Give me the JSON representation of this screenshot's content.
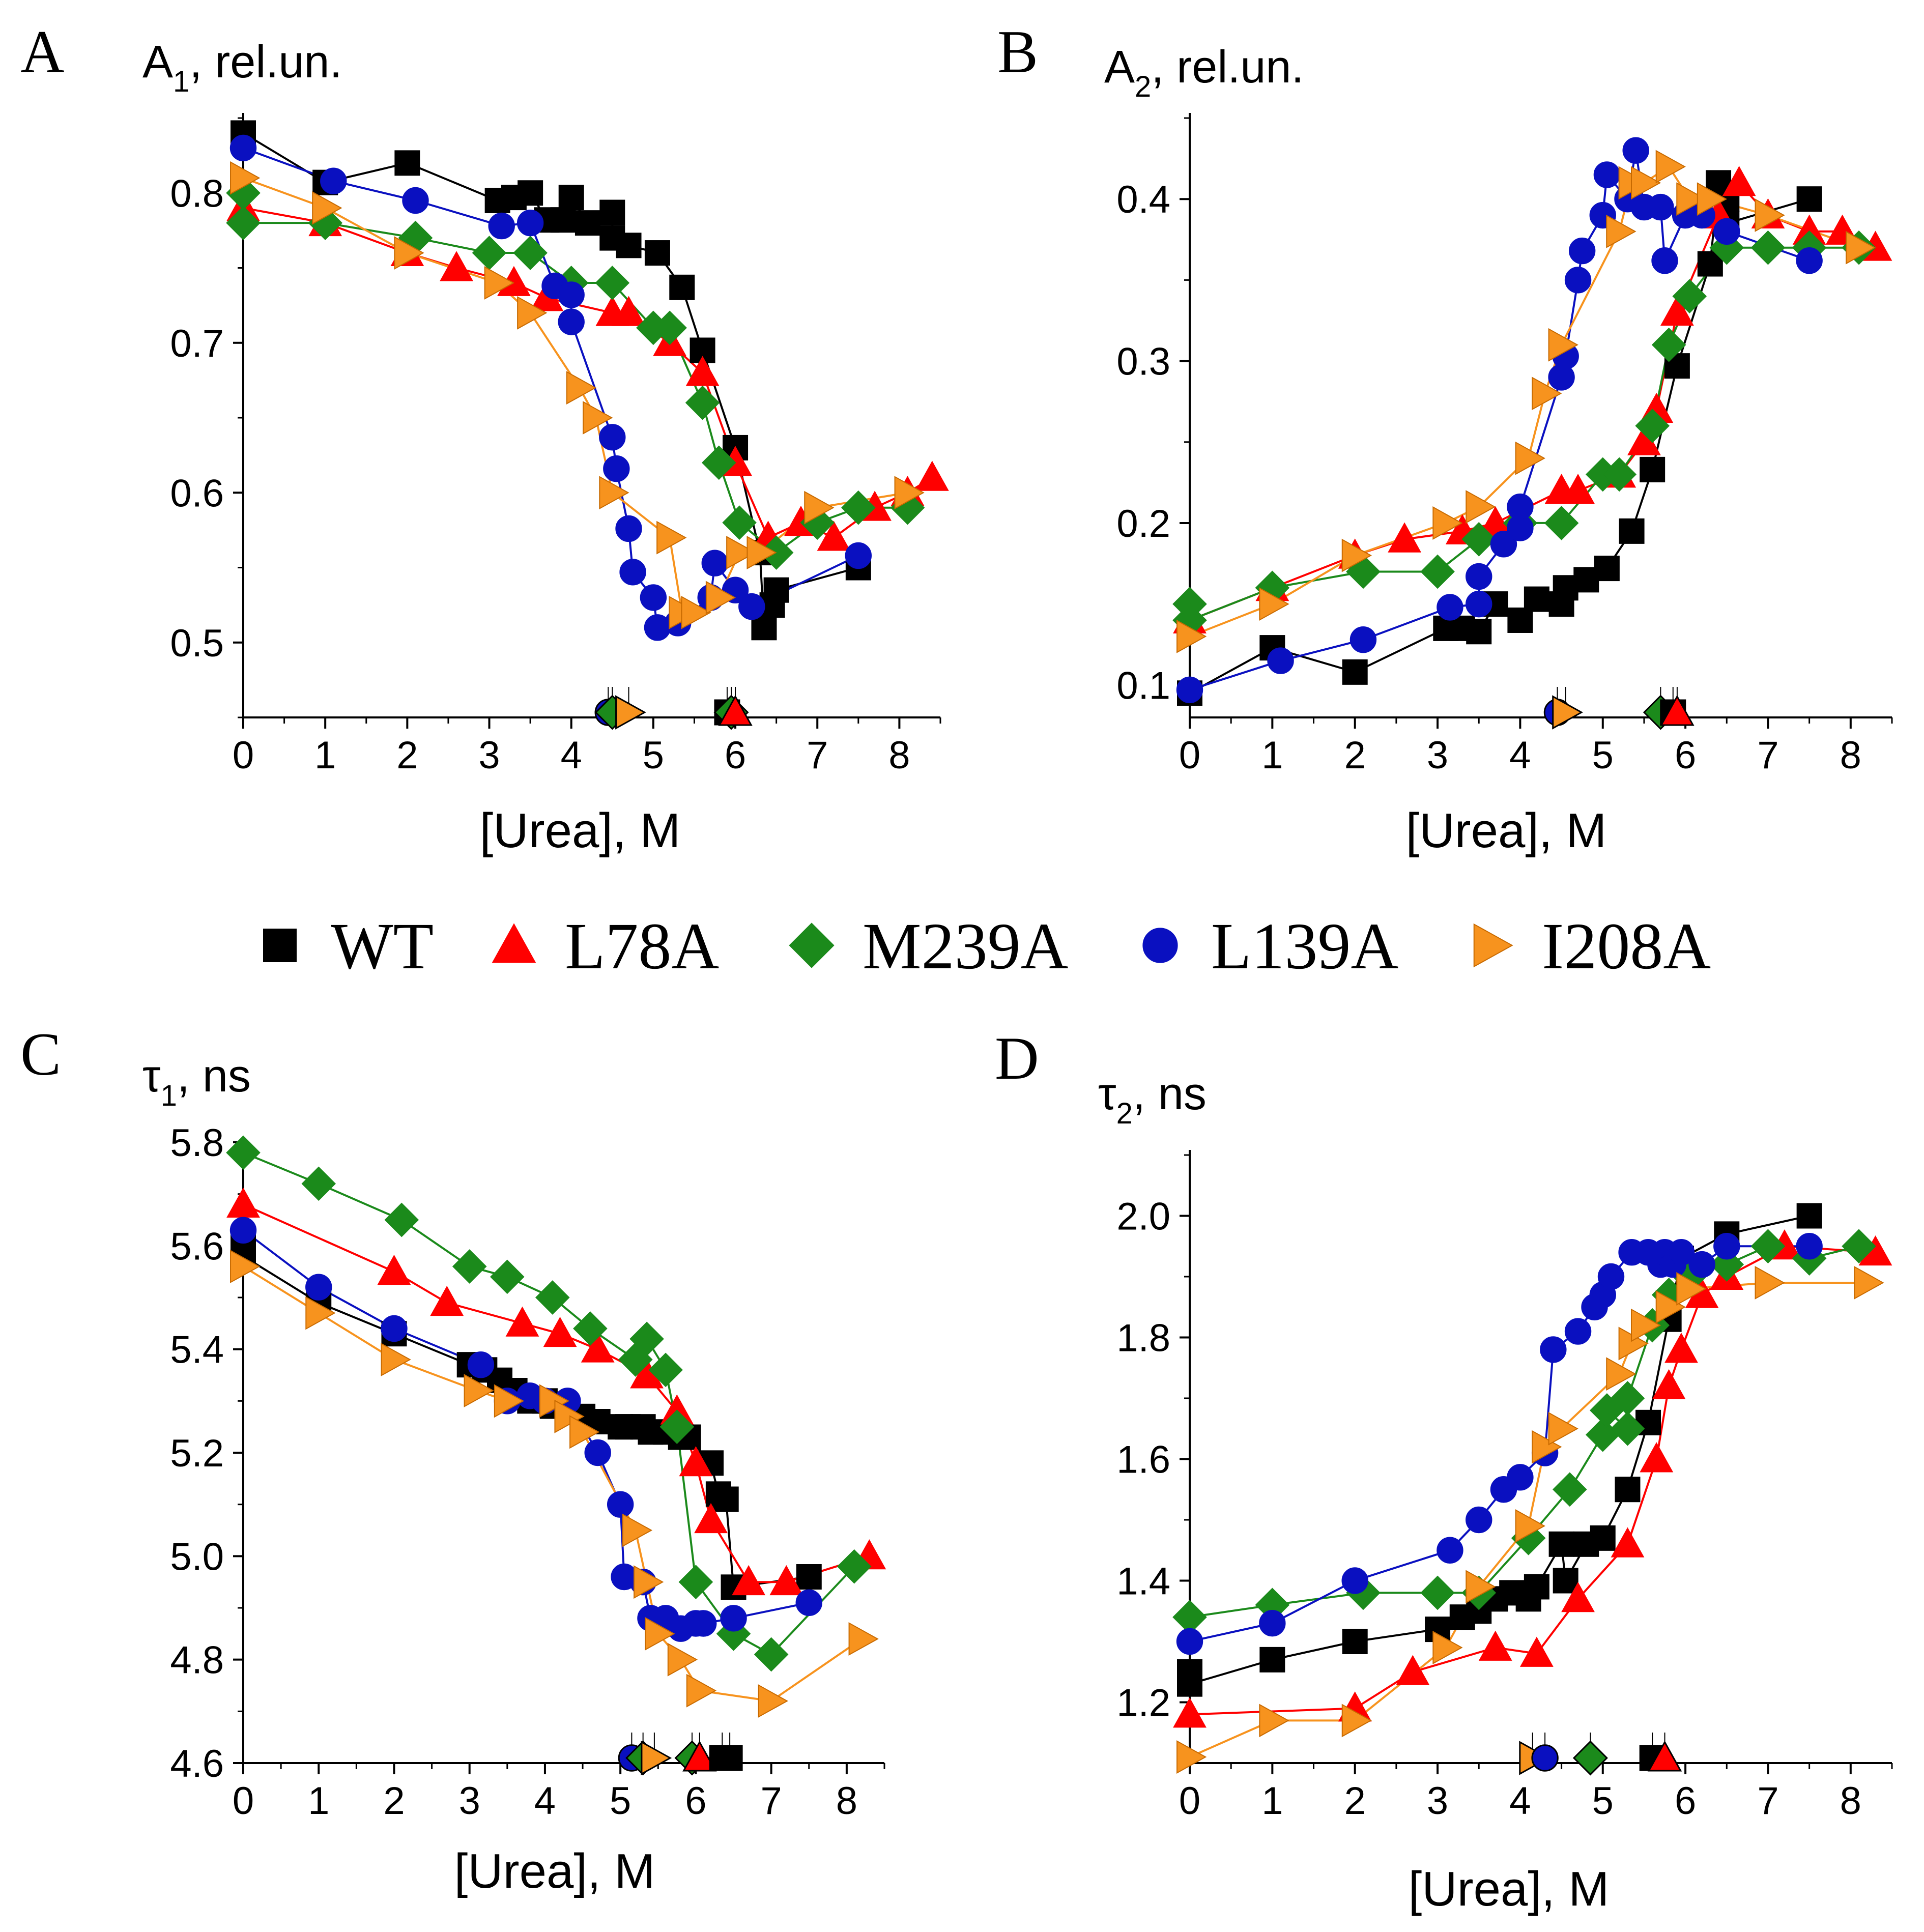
{
  "legend": [
    {
      "name": "WT",
      "color": "#000000",
      "marker": "square"
    },
    {
      "name": "L78A",
      "color": "#ff0000",
      "marker": "triangle-up"
    },
    {
      "name": "M239A",
      "color": "#1b8a1b",
      "marker": "diamond"
    },
    {
      "name": "L139A",
      "color": "#0a10c0",
      "marker": "circle"
    },
    {
      "name": "I208A",
      "color": "#f7931e",
      "marker": "triangle-right"
    }
  ],
  "chart_data": [
    {
      "panel": "A",
      "type": "line",
      "ylabel_main": "A",
      "ylabel_sub": "1",
      "ylabel_rest": ", rel.un.",
      "xlabel": "[Urea], M",
      "xlim": [
        0,
        8.5
      ],
      "ylim": [
        0.45,
        0.85
      ],
      "xticks": [
        0,
        1,
        2,
        3,
        4,
        5,
        6,
        7,
        8
      ],
      "yticks": [
        0.5,
        0.6,
        0.7,
        0.8
      ],
      "ytick_labels": [
        "0.5",
        "0.6",
        "0.7",
        "0.8"
      ],
      "series": [
        {
          "name": "WT",
          "x": [
            0,
            1,
            2,
            3.1,
            3.3,
            3.5,
            3.7,
            3.9,
            4,
            4.2,
            4.5,
            4.5,
            4.7,
            5.05,
            5.35,
            5.6,
            6,
            6.3,
            6.35,
            6.45,
            6.5,
            7.5
          ],
          "y": [
            0.84,
            0.807,
            0.82,
            0.795,
            0.797,
            0.8,
            0.782,
            0.782,
            0.797,
            0.78,
            0.787,
            0.77,
            0.765,
            0.76,
            0.737,
            0.695,
            0.63,
            0.56,
            0.51,
            0.525,
            0.535,
            0.55
          ]
        },
        {
          "name": "L78A",
          "x": [
            0,
            1,
            2,
            2.6,
            3.3,
            3.7,
            4.5,
            4.7,
            5.2,
            5.6,
            6,
            6.4,
            6.8,
            7.2,
            7.7,
            8.1,
            8.4
          ],
          "y": [
            0.79,
            0.78,
            0.76,
            0.75,
            0.74,
            0.73,
            0.72,
            0.72,
            0.7,
            0.68,
            0.62,
            0.57,
            0.58,
            0.57,
            0.59,
            0.6,
            0.61
          ]
        },
        {
          "name": "M239A",
          "x": [
            0,
            0,
            1,
            2.1,
            3,
            3.5,
            4,
            4.5,
            5,
            5.2,
            5.6,
            5.8,
            6.05,
            6.5,
            7,
            7.5,
            8.1
          ],
          "y": [
            0.8,
            0.78,
            0.78,
            0.77,
            0.76,
            0.76,
            0.74,
            0.74,
            0.71,
            0.71,
            0.66,
            0.62,
            0.58,
            0.56,
            0.58,
            0.59,
            0.59
          ]
        },
        {
          "name": "L139A",
          "x": [
            0,
            1.1,
            2.1,
            3.15,
            3.5,
            3.8,
            4,
            4,
            4.5,
            4.55,
            4.7,
            4.75,
            5,
            5.05,
            5.3,
            5.7,
            5.75,
            6,
            6.2,
            7.5
          ],
          "y": [
            0.83,
            0.808,
            0.795,
            0.778,
            0.78,
            0.738,
            0.732,
            0.714,
            0.637,
            0.616,
            0.576,
            0.547,
            0.53,
            0.51,
            0.513,
            0.53,
            0.553,
            0.535,
            0.524,
            0.558
          ]
        },
        {
          "name": "I208A",
          "x": [
            0,
            1,
            2,
            3.1,
            3.5,
            4.1,
            4.3,
            4.5,
            5.2,
            5.35,
            5.5,
            5.8,
            6.05,
            6.3,
            7,
            8.1
          ],
          "y": [
            0.81,
            0.79,
            0.76,
            0.74,
            0.72,
            0.67,
            0.65,
            0.6,
            0.57,
            0.52,
            0.52,
            0.53,
            0.56,
            0.56,
            0.59,
            0.6
          ]
        }
      ],
      "midpoint_markers": [
        {
          "series": "L139A",
          "x": 4.45
        },
        {
          "series": "M239A",
          "x": 4.5
        },
        {
          "series": "I208A",
          "x": 4.7
        },
        {
          "series": "WT",
          "x": 5.9
        },
        {
          "series": "M239A",
          "x": 5.95
        },
        {
          "series": "L78A",
          "x": 6.0
        }
      ]
    },
    {
      "panel": "B",
      "type": "line",
      "ylabel_main": "A",
      "ylabel_sub": "2",
      "ylabel_rest": ", rel.un.",
      "xlabel": "[Urea], M",
      "xlim": [
        0,
        8.5
      ],
      "ylim": [
        0.08,
        0.45
      ],
      "xticks": [
        0,
        1,
        2,
        3,
        4,
        5,
        6,
        7,
        8
      ],
      "yticks": [
        0.1,
        0.2,
        0.3,
        0.4
      ],
      "ytick_labels": [
        "0.1",
        "0.2",
        "0.3",
        "0.4"
      ],
      "series": [
        {
          "name": "WT",
          "x": [
            0,
            1,
            2,
            3.1,
            3.3,
            3.5,
            3.7,
            4,
            4.2,
            4.5,
            4.55,
            4.8,
            5.05,
            5.35,
            5.6,
            5.9,
            6.3,
            6.4,
            6.5,
            6.5,
            7.5
          ],
          "y": [
            0.095,
            0.123,
            0.108,
            0.135,
            0.135,
            0.133,
            0.15,
            0.14,
            0.153,
            0.15,
            0.16,
            0.165,
            0.172,
            0.195,
            0.233,
            0.297,
            0.36,
            0.41,
            0.4,
            0.385,
            0.4
          ]
        },
        {
          "name": "L78A",
          "x": [
            0,
            1,
            2,
            2.6,
            3.3,
            3.7,
            4.5,
            4.7,
            5.2,
            5.5,
            5.65,
            5.9,
            6.4,
            6.65,
            7,
            7.5,
            7.9,
            8.3
          ],
          "y": [
            0.14,
            0.16,
            0.18,
            0.19,
            0.195,
            0.2,
            0.22,
            0.22,
            0.23,
            0.25,
            0.27,
            0.33,
            0.39,
            0.41,
            0.39,
            0.38,
            0.38,
            0.37
          ]
        },
        {
          "name": "M239A",
          "x": [
            0,
            0,
            1,
            2.1,
            3,
            3.5,
            4,
            4.5,
            5,
            5.2,
            5.6,
            5.8,
            6.05,
            6.5,
            7,
            7.5,
            8.1
          ],
          "y": [
            0.15,
            0.14,
            0.16,
            0.17,
            0.17,
            0.19,
            0.2,
            0.2,
            0.23,
            0.23,
            0.26,
            0.31,
            0.34,
            0.37,
            0.37,
            0.37,
            0.37
          ]
        },
        {
          "name": "L139A",
          "x": [
            0,
            1.1,
            2.1,
            3.15,
            3.5,
            3.5,
            3.8,
            4,
            4,
            4.5,
            4.55,
            4.7,
            4.75,
            5,
            5.05,
            5.3,
            5.4,
            5.5,
            5.7,
            5.75,
            6,
            6.2,
            6.5,
            7.5
          ],
          "y": [
            0.097,
            0.115,
            0.128,
            0.148,
            0.15,
            0.167,
            0.187,
            0.197,
            0.21,
            0.29,
            0.303,
            0.35,
            0.368,
            0.39,
            0.415,
            0.4,
            0.43,
            0.395,
            0.395,
            0.362,
            0.39,
            0.39,
            0.38,
            0.362
          ]
        },
        {
          "name": "I208A",
          "x": [
            0,
            1,
            2,
            3.1,
            3.5,
            4.1,
            4.3,
            4.5,
            5.2,
            5.35,
            5.5,
            5.8,
            6.05,
            6.3,
            7,
            8.1
          ],
          "y": [
            0.13,
            0.15,
            0.18,
            0.2,
            0.21,
            0.24,
            0.28,
            0.31,
            0.38,
            0.41,
            0.41,
            0.42,
            0.4,
            0.4,
            0.39,
            0.37
          ]
        }
      ],
      "midpoint_markers": [
        {
          "series": "L139A",
          "x": 4.45
        },
        {
          "series": "I208A",
          "x": 4.55
        },
        {
          "series": "M239A",
          "x": 5.7
        },
        {
          "series": "WT",
          "x": 5.85
        },
        {
          "series": "L78A",
          "x": 5.9
        }
      ]
    },
    {
      "panel": "C",
      "type": "line",
      "ylabel_main": "τ",
      "ylabel_sub": "1",
      "ylabel_rest": ", ns",
      "xlabel": "[Urea], M",
      "xlim": [
        0,
        8.5
      ],
      "ylim": [
        4.6,
        5.8
      ],
      "xticks": [
        0,
        1,
        2,
        3,
        4,
        5,
        6,
        7,
        8
      ],
      "yticks": [
        4.6,
        4.8,
        5.0,
        5.2,
        5.4,
        5.6,
        5.8
      ],
      "ytick_labels": [
        "4.6",
        "4.8",
        "5.0",
        "5.2",
        "5.4",
        "5.6",
        "5.8"
      ],
      "series": [
        {
          "name": "WT",
          "x": [
            0,
            0,
            1,
            2,
            3,
            3.2,
            3.4,
            3.6,
            3.8,
            4,
            4.1,
            4.3,
            4.5,
            4.7,
            5,
            5.1,
            5.3,
            5.4,
            5.6,
            5.8,
            5.9,
            6.2,
            6.3,
            6.4,
            6.5,
            7.5
          ],
          "y": [
            5.6,
            5.58,
            5.49,
            5.43,
            5.37,
            5.36,
            5.34,
            5.32,
            5.3,
            5.3,
            5.29,
            5.28,
            5.27,
            5.26,
            5.25,
            5.25,
            5.25,
            5.24,
            5.24,
            5.23,
            5.23,
            5.18,
            5.12,
            5.11,
            4.94,
            4.96
          ]
        },
        {
          "name": "L78A",
          "x": [
            0,
            2,
            2.7,
            3.7,
            4.2,
            4.7,
            5.35,
            5.75,
            6,
            6.2,
            6.7,
            7.2,
            8.3
          ],
          "y": [
            5.68,
            5.55,
            5.49,
            5.45,
            5.43,
            5.4,
            5.35,
            5.28,
            5.18,
            5.07,
            4.95,
            4.95,
            5.0
          ]
        },
        {
          "name": "M239A",
          "x": [
            0,
            1,
            2.1,
            3,
            3.5,
            4.1,
            4.6,
            5.2,
            5.35,
            5.6,
            5.75,
            6,
            6.5,
            7,
            8.1
          ],
          "y": [
            5.78,
            5.72,
            5.65,
            5.56,
            5.54,
            5.5,
            5.44,
            5.38,
            5.42,
            5.36,
            5.25,
            4.95,
            4.85,
            4.81,
            4.98
          ]
        },
        {
          "name": "L139A",
          "x": [
            0,
            1,
            2,
            3.15,
            3.5,
            3.8,
            4,
            4.3,
            4.7,
            5,
            5.05,
            5.3,
            5.4,
            5.6,
            5.8,
            6,
            6.1,
            6.5,
            7.5
          ],
          "y": [
            5.63,
            5.52,
            5.44,
            5.37,
            5.3,
            5.31,
            5.3,
            5.3,
            5.2,
            5.1,
            4.96,
            4.95,
            4.88,
            4.88,
            4.86,
            4.87,
            4.87,
            4.88,
            4.91
          ]
        },
        {
          "name": "I208A",
          "x": [
            0,
            1,
            2,
            3.1,
            3.5,
            4.1,
            4.3,
            4.5,
            5.2,
            5.35,
            5.5,
            5.8,
            6.05,
            7,
            8.2
          ],
          "y": [
            5.56,
            5.47,
            5.38,
            5.32,
            5.3,
            5.3,
            5.27,
            5.24,
            5.05,
            4.95,
            4.85,
            4.8,
            4.74,
            4.72,
            4.84
          ]
        }
      ],
      "midpoint_markers": [
        {
          "series": "L139A",
          "x": 5.15
        },
        {
          "series": "M239A",
          "x": 5.3
        },
        {
          "series": "I208A",
          "x": 5.45
        },
        {
          "series": "M239A",
          "x": 5.95
        },
        {
          "series": "L78A",
          "x": 6.05
        },
        {
          "series": "WT",
          "x": 6.35
        },
        {
          "series": "WT",
          "x": 6.45
        }
      ]
    },
    {
      "panel": "D",
      "type": "line",
      "ylabel_main": "τ",
      "ylabel_sub": "2",
      "ylabel_rest": ", ns",
      "xlabel": "[Urea], M",
      "xlim": [
        0,
        8.5
      ],
      "ylim": [
        1.1,
        2.1
      ],
      "xticks": [
        0,
        1,
        2,
        3,
        4,
        5,
        6,
        7,
        8
      ],
      "yticks": [
        1.2,
        1.4,
        1.6,
        1.8,
        2.0
      ],
      "ytick_labels": [
        "1.2",
        "1.4",
        "1.6",
        "1.8",
        "2.0"
      ],
      "series": [
        {
          "name": "WT",
          "x": [
            0,
            0,
            1,
            2,
            3,
            3.3,
            3.5,
            3.7,
            3.9,
            4.1,
            4.2,
            4.5,
            4.55,
            4.8,
            5,
            5.3,
            5.55,
            5.8,
            5.95,
            6.5,
            7.5
          ],
          "y": [
            1.25,
            1.23,
            1.27,
            1.3,
            1.32,
            1.34,
            1.35,
            1.37,
            1.38,
            1.37,
            1.39,
            1.46,
            1.4,
            1.46,
            1.47,
            1.55,
            1.66,
            1.83,
            1.93,
            1.97,
            2.0
          ]
        },
        {
          "name": "L78A",
          "x": [
            0,
            2,
            2.7,
            3.7,
            4.2,
            4.7,
            5.3,
            5.65,
            5.8,
            5.95,
            6.2,
            6.5,
            7.2,
            8.3
          ],
          "y": [
            1.18,
            1.19,
            1.25,
            1.29,
            1.28,
            1.37,
            1.46,
            1.6,
            1.72,
            1.78,
            1.87,
            1.9,
            1.95,
            1.94
          ]
        },
        {
          "name": "M239A",
          "x": [
            0,
            1,
            2.1,
            3,
            3.5,
            4.1,
            4.6,
            5,
            5.05,
            5.3,
            5.3,
            5.6,
            5.8,
            6.05,
            6.5,
            7,
            7.5,
            8.1
          ],
          "y": [
            1.34,
            1.36,
            1.38,
            1.38,
            1.38,
            1.47,
            1.55,
            1.64,
            1.68,
            1.65,
            1.7,
            1.82,
            1.87,
            1.9,
            1.92,
            1.95,
            1.93,
            1.95
          ]
        },
        {
          "name": "L139A",
          "x": [
            0,
            1,
            2,
            3.15,
            3.5,
            3.8,
            4,
            4.3,
            4.4,
            4.7,
            4.9,
            5,
            5.1,
            5.35,
            5.55,
            5.7,
            5.75,
            5.85,
            5.95,
            6.2,
            6.5,
            7.5
          ],
          "y": [
            1.3,
            1.33,
            1.4,
            1.45,
            1.5,
            1.55,
            1.57,
            1.61,
            1.78,
            1.81,
            1.85,
            1.87,
            1.9,
            1.94,
            1.94,
            1.92,
            1.94,
            1.92,
            1.94,
            1.92,
            1.95,
            1.95
          ]
        },
        {
          "name": "I208A",
          "x": [
            0,
            1,
            2,
            3.1,
            3.5,
            4.1,
            4.3,
            4.5,
            5.2,
            5.35,
            5.5,
            5.8,
            6.05,
            7,
            8.2
          ],
          "y": [
            1.11,
            1.17,
            1.17,
            1.29,
            1.39,
            1.49,
            1.62,
            1.65,
            1.74,
            1.79,
            1.82,
            1.85,
            1.88,
            1.89,
            1.89
          ]
        }
      ],
      "midpoint_markers": [
        {
          "series": "I208A",
          "x": 4.15
        },
        {
          "series": "L139A",
          "x": 4.3
        },
        {
          "series": "M239A",
          "x": 4.85
        },
        {
          "series": "WT",
          "x": 5.6
        },
        {
          "series": "L78A",
          "x": 5.75
        }
      ]
    }
  ]
}
